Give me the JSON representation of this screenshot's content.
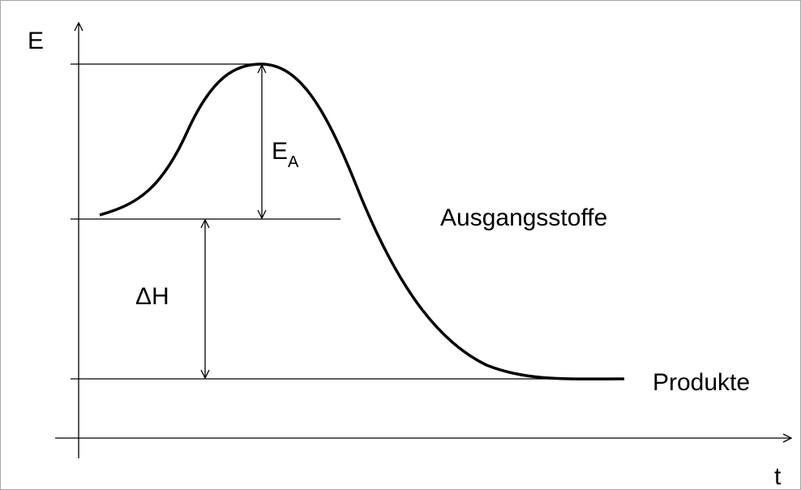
{
  "axes": {
    "y_label": "E",
    "x_label": "t"
  },
  "labels": {
    "activation_energy": {
      "main": "E",
      "sub": "A"
    },
    "reactants": "Ausgangsstoffe",
    "enthalpy": "ΔH",
    "products": "Produkte"
  }
}
